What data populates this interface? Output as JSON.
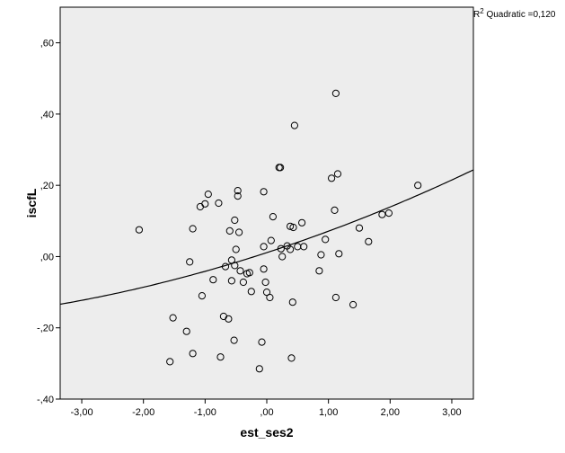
{
  "chart_data": {
    "type": "scatter",
    "xlabel": "est_ses2",
    "ylabel": "iscfL",
    "xlim": [
      -3.35,
      3.35
    ],
    "ylim": [
      -0.4,
      0.7
    ],
    "xticks": [
      -3.0,
      -2.0,
      -1.0,
      0.0,
      1.0,
      2.0,
      3.0
    ],
    "xtick_labels": [
      "-3,00",
      "-2,00",
      "-1,00",
      ",00",
      "1,00",
      "2,00",
      "3,00"
    ],
    "yticks": [
      -0.4,
      -0.2,
      0.0,
      0.2,
      0.4,
      0.6
    ],
    "ytick_labels": [
      "-,40",
      "-,20",
      ",00",
      ",20",
      ",40",
      ",60"
    ],
    "grid": false,
    "background": "#ededed",
    "marker_color": "#000000",
    "fit_line": {
      "type": "quadratic",
      "label_prefix": "R",
      "label_superscript": "2",
      "label_rest": " Quadratic =0,120",
      "coefficients": [
        0.011,
        0.0563,
        0.0039
      ]
    },
    "points": [
      {
        "x": -2.07,
        "y": 0.075
      },
      {
        "x": -1.57,
        "y": -0.295
      },
      {
        "x": -1.52,
        "y": -0.172
      },
      {
        "x": -1.3,
        "y": -0.21
      },
      {
        "x": -1.25,
        "y": -0.015
      },
      {
        "x": -1.2,
        "y": 0.078
      },
      {
        "x": -1.2,
        "y": -0.272
      },
      {
        "x": -1.08,
        "y": 0.14
      },
      {
        "x": -1.05,
        "y": -0.11
      },
      {
        "x": -1.0,
        "y": 0.148
      },
      {
        "x": -0.95,
        "y": 0.175
      },
      {
        "x": -0.87,
        "y": -0.065
      },
      {
        "x": -0.78,
        "y": 0.15
      },
      {
        "x": -0.75,
        "y": -0.282
      },
      {
        "x": -0.7,
        "y": -0.168
      },
      {
        "x": -0.67,
        "y": -0.028
      },
      {
        "x": -0.62,
        "y": -0.175
      },
      {
        "x": -0.6,
        "y": 0.072
      },
      {
        "x": -0.57,
        "y": -0.01
      },
      {
        "x": -0.57,
        "y": -0.068
      },
      {
        "x": -0.53,
        "y": -0.235
      },
      {
        "x": -0.52,
        "y": -0.025
      },
      {
        "x": -0.52,
        "y": 0.102
      },
      {
        "x": -0.5,
        "y": 0.02
      },
      {
        "x": -0.47,
        "y": 0.185
      },
      {
        "x": -0.47,
        "y": 0.17
      },
      {
        "x": -0.45,
        "y": 0.068
      },
      {
        "x": -0.43,
        "y": -0.04
      },
      {
        "x": -0.38,
        "y": -0.072
      },
      {
        "x": -0.32,
        "y": -0.048
      },
      {
        "x": -0.28,
        "y": -0.045
      },
      {
        "x": -0.25,
        "y": -0.098
      },
      {
        "x": -0.12,
        "y": -0.315
      },
      {
        "x": -0.08,
        "y": -0.24
      },
      {
        "x": -0.05,
        "y": 0.182
      },
      {
        "x": -0.05,
        "y": 0.028
      },
      {
        "x": -0.05,
        "y": -0.035
      },
      {
        "x": -0.02,
        "y": -0.072
      },
      {
        "x": 0.0,
        "y": -0.1
      },
      {
        "x": 0.05,
        "y": -0.115
      },
      {
        "x": 0.07,
        "y": 0.045
      },
      {
        "x": 0.1,
        "y": 0.112
      },
      {
        "x": 0.2,
        "y": 0.25
      },
      {
        "x": 0.22,
        "y": 0.25
      },
      {
        "x": 0.23,
        "y": 0.022
      },
      {
        "x": 0.25,
        "y": 0.0
      },
      {
        "x": 0.33,
        "y": 0.03
      },
      {
        "x": 0.38,
        "y": 0.02
      },
      {
        "x": 0.38,
        "y": 0.085
      },
      {
        "x": 0.4,
        "y": -0.285
      },
      {
        "x": 0.42,
        "y": -0.128
      },
      {
        "x": 0.43,
        "y": 0.082
      },
      {
        "x": 0.45,
        "y": 0.368
      },
      {
        "x": 0.5,
        "y": 0.028
      },
      {
        "x": 0.57,
        "y": 0.095
      },
      {
        "x": 0.6,
        "y": 0.028
      },
      {
        "x": 0.85,
        "y": -0.04
      },
      {
        "x": 0.88,
        "y": 0.005
      },
      {
        "x": 0.95,
        "y": 0.048
      },
      {
        "x": 1.05,
        "y": 0.22
      },
      {
        "x": 1.1,
        "y": 0.13
      },
      {
        "x": 1.12,
        "y": -0.115
      },
      {
        "x": 1.12,
        "y": 0.458
      },
      {
        "x": 1.15,
        "y": 0.232
      },
      {
        "x": 1.17,
        "y": 0.008
      },
      {
        "x": 1.4,
        "y": -0.135
      },
      {
        "x": 1.5,
        "y": 0.08
      },
      {
        "x": 1.65,
        "y": 0.042
      },
      {
        "x": 1.87,
        "y": 0.118
      },
      {
        "x": 1.98,
        "y": 0.122
      },
      {
        "x": 2.45,
        "y": 0.2
      }
    ]
  }
}
